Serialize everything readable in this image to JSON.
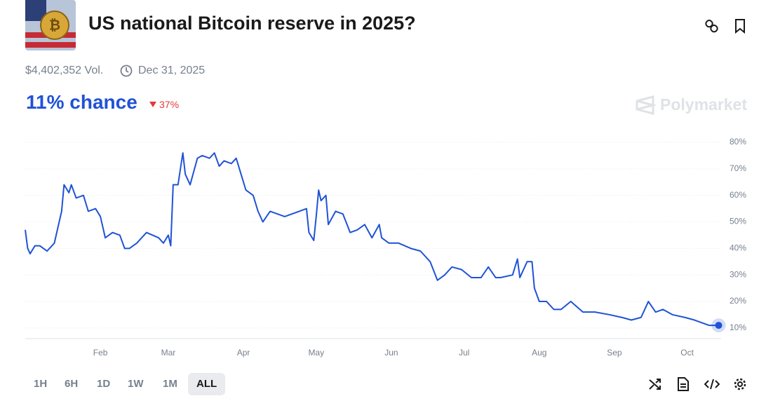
{
  "header": {
    "title": "US national Bitcoin reserve in 2025?",
    "volume": "$4,402,352 Vol.",
    "end_date": "Dec 31, 2025",
    "chance": "11% chance",
    "change": "37%",
    "brand": "Polymarket"
  },
  "range_buttons": [
    "1H",
    "6H",
    "1D",
    "1W",
    "1M",
    "ALL"
  ],
  "chart_data": {
    "type": "line",
    "color": "#1f52d6",
    "grid": true,
    "x": [
      1,
      2,
      3,
      5,
      7,
      10,
      13,
      14,
      16,
      17,
      19,
      20,
      22,
      25,
      27,
      30,
      32,
      34,
      37,
      40,
      42,
      44,
      47,
      51,
      56,
      58,
      60,
      61,
      62,
      64,
      66,
      67,
      69,
      72,
      74,
      77,
      79,
      81,
      83,
      86,
      88,
      90,
      92,
      95,
      97,
      99,
      102,
      105,
      108,
      111,
      114,
      117,
      118,
      120,
      121,
      122,
      123,
      125,
      126,
      129,
      132,
      135,
      138,
      141,
      144,
      147,
      148,
      151,
      155,
      160,
      164,
      168,
      171,
      174,
      177,
      181,
      185,
      189,
      192,
      195,
      197,
      202,
      204,
      205,
      208,
      210,
      211,
      213,
      216,
      219,
      222,
      226,
      231,
      236,
      242,
      247,
      251,
      255,
      258,
      261,
      264,
      268,
      273,
      277,
      280,
      283,
      287
    ],
    "values": [
      47,
      40,
      38,
      41,
      41,
      39,
      42,
      46,
      54,
      64,
      61,
      64,
      59,
      60,
      54,
      55,
      52,
      44,
      46,
      45,
      40,
      40,
      42,
      46,
      44,
      42,
      45,
      41,
      64,
      64,
      76,
      68,
      64,
      74,
      75,
      74,
      76,
      71,
      73,
      72,
      74,
      68,
      62,
      60,
      54,
      50,
      54,
      53,
      52,
      53,
      54,
      55,
      46,
      43,
      52,
      62,
      58,
      60,
      49,
      54,
      53,
      46,
      47,
      49,
      44,
      49,
      44,
      42,
      42,
      40,
      39,
      35,
      28,
      30,
      33,
      32,
      29,
      29,
      33,
      29,
      29,
      30,
      36,
      29,
      35,
      35,
      25,
      20,
      20,
      17,
      17,
      20,
      16,
      16,
      15,
      14,
      13,
      14,
      20,
      16,
      17,
      15,
      14,
      13,
      12,
      11,
      11
    ],
    "xlim": [
      1,
      288
    ],
    "xticks": [
      {
        "value": 32,
        "label": "Feb"
      },
      {
        "value": 60,
        "label": "Mar"
      },
      {
        "value": 91,
        "label": "Apr"
      },
      {
        "value": 121,
        "label": "May"
      },
      {
        "value": 152,
        "label": "Jun"
      },
      {
        "value": 182,
        "label": "Jul"
      },
      {
        "value": 213,
        "label": "Aug"
      },
      {
        "value": 244,
        "label": "Sep"
      },
      {
        "value": 274,
        "label": "Oct"
      }
    ],
    "ylim": [
      6,
      80
    ],
    "yticks": [
      {
        "value": 10,
        "label": "10%"
      },
      {
        "value": 20,
        "label": "20%"
      },
      {
        "value": 30,
        "label": "30%"
      },
      {
        "value": 40,
        "label": "40%"
      },
      {
        "value": 50,
        "label": "50%"
      },
      {
        "value": 60,
        "label": "60%"
      },
      {
        "value": 70,
        "label": "70%"
      },
      {
        "value": 80,
        "label": "80%"
      }
    ]
  }
}
